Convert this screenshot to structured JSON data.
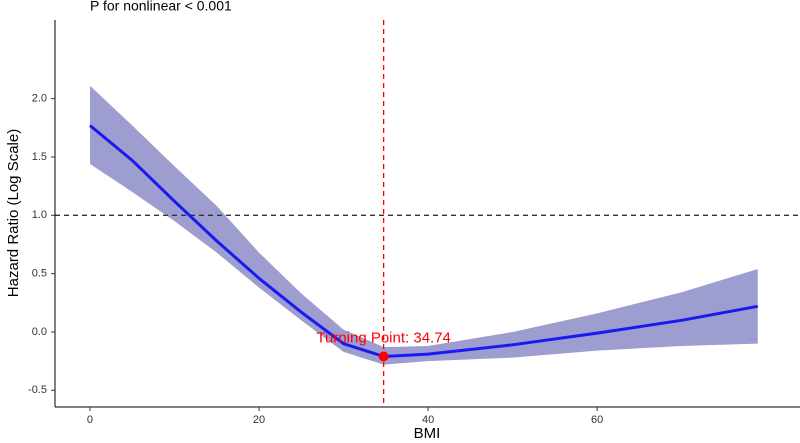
{
  "chart_data": {
    "type": "line",
    "title": "P for nonlinear < 0.001",
    "x_label": "BMI",
    "y_label": "Hazard Ratio (Log Scale)",
    "x": [
      0,
      5,
      10,
      15,
      20,
      25,
      30,
      34.74,
      40,
      50,
      60,
      70,
      79
    ],
    "values": [
      1.77,
      1.47,
      1.12,
      0.78,
      0.46,
      0.17,
      -0.1,
      -0.21,
      -0.19,
      -0.11,
      -0.01,
      0.1,
      0.22
    ],
    "lower": [
      1.44,
      1.2,
      0.95,
      0.68,
      0.38,
      0.1,
      -0.17,
      -0.28,
      -0.25,
      -0.22,
      -0.16,
      -0.12,
      -0.1
    ],
    "upper": [
      2.11,
      1.77,
      1.42,
      1.08,
      0.68,
      0.33,
      0.02,
      -0.13,
      -0.12,
      0.0,
      0.16,
      0.34,
      0.54
    ],
    "color": "#1a1aee",
    "band_color": "#8c8cc8",
    "reference_y": 1,
    "turning_point": {
      "x": 34.74,
      "y": -0.21,
      "label": "Turning Point:  34.74",
      "color": "#ff0000"
    },
    "xlim": [
      -4.14,
      84
    ],
    "ylim": [
      -0.643,
      2.674
    ],
    "xticks": [
      0,
      20,
      40,
      60
    ],
    "yticks": [
      {
        "value": -0.5,
        "label": "-0.5"
      },
      {
        "value": 0,
        "label": "0.0"
      },
      {
        "value": 0.5,
        "label": "0.5"
      },
      {
        "value": 1,
        "label": "1.0"
      },
      {
        "value": 1.5,
        "label": "1.5"
      },
      {
        "value": 2,
        "label": "2.0"
      }
    ]
  }
}
